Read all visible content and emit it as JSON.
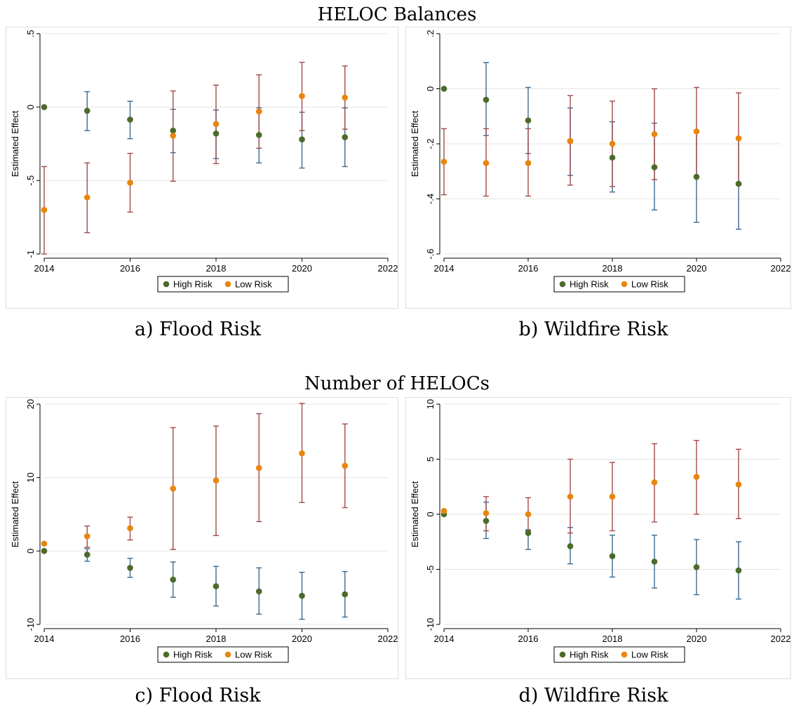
{
  "titles": {
    "top": "HELOC Balances",
    "bottom": "Number of HELOCs"
  },
  "captions": {
    "a": "a) Flood Risk",
    "b": "b) Wildfire Risk",
    "c": "c) Flood Risk",
    "d": "d) Wildfire Risk"
  },
  "colors": {
    "high_point": "#4a6b2a",
    "high_bar": "#3d6a91",
    "low_point": "#e8850c",
    "low_bar": "#a34a4a",
    "grid": "#e4e4e4",
    "frame": "#dcdcdc"
  },
  "chart_data": [
    {
      "panel": "a",
      "type": "scatter",
      "ylabel": "Estimated Effect",
      "xlim": [
        2014,
        2022
      ],
      "ylim": [
        -1,
        0.5
      ],
      "xticks": [
        2014,
        2016,
        2018,
        2020,
        2022
      ],
      "yticks": [
        -1,
        -0.5,
        0,
        0.5
      ],
      "ytick_labels": [
        "-1",
        "-.5",
        "0",
        ".5"
      ],
      "legend": [
        "High Risk",
        "Low Risk"
      ],
      "legend_position": "bottom",
      "grid": true,
      "series": [
        {
          "name": "High Risk",
          "x": [
            2014,
            2015,
            2016,
            2017,
            2018,
            2019,
            2020,
            2021
          ],
          "y": [
            0,
            -0.025,
            -0.085,
            -0.16,
            -0.18,
            -0.19,
            -0.22,
            -0.205
          ],
          "ci_low": [
            null,
            -0.16,
            -0.215,
            -0.31,
            -0.35,
            -0.38,
            -0.415,
            -0.405
          ],
          "ci_high": [
            null,
            0.105,
            0.04,
            -0.015,
            -0.02,
            -0.005,
            -0.035,
            -0.005
          ]
        },
        {
          "name": "Low Risk",
          "x": [
            2014,
            2015,
            2016,
            2017,
            2018,
            2019,
            2020,
            2021
          ],
          "y": [
            -0.7,
            -0.615,
            -0.515,
            -0.195,
            -0.115,
            -0.03,
            0.075,
            0.065
          ],
          "ci_low": [
            -1.0,
            -0.855,
            -0.715,
            -0.505,
            -0.385,
            -0.28,
            -0.16,
            -0.15
          ],
          "ci_high": [
            -0.405,
            -0.38,
            -0.315,
            0.11,
            0.15,
            0.22,
            0.305,
            0.28
          ]
        }
      ]
    },
    {
      "panel": "b",
      "type": "scatter",
      "ylabel": "Estimated Effect",
      "xlim": [
        2014,
        2022
      ],
      "ylim": [
        -0.6,
        0.2
      ],
      "xticks": [
        2014,
        2016,
        2018,
        2020,
        2022
      ],
      "yticks": [
        -0.6,
        -0.4,
        -0.2,
        0,
        0.2
      ],
      "ytick_labels": [
        "-.6",
        "-.4",
        "-.2",
        "0",
        ".2"
      ],
      "legend": [
        "High Risk",
        "Low Risk"
      ],
      "legend_position": "bottom",
      "grid": true,
      "series": [
        {
          "name": "High Risk",
          "x": [
            2014,
            2015,
            2016,
            2017,
            2018,
            2019,
            2020,
            2021
          ],
          "y": [
            0,
            -0.04,
            -0.115,
            -0.19,
            -0.25,
            -0.285,
            -0.32,
            -0.345
          ],
          "ci_low": [
            null,
            -0.17,
            -0.235,
            -0.315,
            -0.375,
            -0.44,
            -0.485,
            -0.51
          ],
          "ci_high": [
            null,
            0.095,
            0.005,
            -0.07,
            -0.12,
            -0.125,
            -0.155,
            -0.18
          ]
        },
        {
          "name": "Low Risk",
          "x": [
            2014,
            2015,
            2016,
            2017,
            2018,
            2019,
            2020,
            2021
          ],
          "y": [
            -0.265,
            -0.27,
            -0.27,
            -0.19,
            -0.2,
            -0.165,
            -0.155,
            -0.18
          ],
          "ci_low": [
            -0.385,
            -0.39,
            -0.39,
            -0.35,
            -0.355,
            -0.33,
            -0.32,
            -0.35
          ],
          "ci_high": [
            -0.145,
            -0.145,
            -0.145,
            -0.025,
            -0.045,
            0.0,
            0.005,
            -0.015
          ]
        }
      ]
    },
    {
      "panel": "c",
      "type": "scatter",
      "ylabel": "Estimated Effect",
      "xlim": [
        2014,
        2022
      ],
      "ylim": [
        -10,
        20
      ],
      "xticks": [
        2014,
        2016,
        2018,
        2020,
        2022
      ],
      "yticks": [
        -10,
        0,
        10,
        20
      ],
      "ytick_labels": [
        "-10",
        "0",
        "10",
        "20"
      ],
      "legend": [
        "High Risk",
        "Low Risk"
      ],
      "legend_position": "bottom",
      "grid": true,
      "series": [
        {
          "name": "High Risk",
          "x": [
            2014,
            2015,
            2016,
            2017,
            2018,
            2019,
            2020,
            2021
          ],
          "y": [
            0,
            -0.5,
            -2.3,
            -3.9,
            -4.8,
            -5.5,
            -6.1,
            -5.9
          ],
          "ci_low": [
            null,
            -1.4,
            -3.6,
            -6.3,
            -7.5,
            -8.6,
            -9.3,
            -9.0
          ],
          "ci_high": [
            null,
            0.3,
            -1.0,
            -1.5,
            -2.1,
            -2.3,
            -2.9,
            -2.8
          ]
        },
        {
          "name": "Low Risk",
          "x": [
            2014,
            2015,
            2016,
            2017,
            2018,
            2019,
            2020,
            2021
          ],
          "y": [
            1.0,
            2.0,
            3.1,
            8.5,
            9.6,
            11.3,
            13.3,
            11.6
          ],
          "ci_low": [
            null,
            0.5,
            1.5,
            0.2,
            2.1,
            4.0,
            6.6,
            5.9
          ],
          "ci_high": [
            null,
            3.4,
            4.6,
            16.8,
            17.0,
            18.7,
            20.1,
            17.3
          ]
        }
      ]
    },
    {
      "panel": "d",
      "type": "scatter",
      "ylabel": "Estimated Effect",
      "xlim": [
        2014,
        2022
      ],
      "ylim": [
        -10,
        10
      ],
      "xticks": [
        2014,
        2016,
        2018,
        2020,
        2022
      ],
      "yticks": [
        -10,
        -5,
        0,
        5,
        10
      ],
      "ytick_labels": [
        "-10",
        "-5",
        "0",
        "5",
        "10"
      ],
      "legend": [
        "High Risk",
        "Low Risk"
      ],
      "legend_position": "bottom",
      "grid": true,
      "series": [
        {
          "name": "High Risk",
          "x": [
            2014,
            2015,
            2016,
            2017,
            2018,
            2019,
            2020,
            2021
          ],
          "y": [
            0,
            -0.6,
            -1.7,
            -2.9,
            -3.8,
            -4.3,
            -4.8,
            -5.1
          ],
          "ci_low": [
            null,
            -2.2,
            -3.2,
            -4.5,
            -5.7,
            -6.7,
            -7.3,
            -7.7
          ],
          "ci_high": [
            null,
            1.1,
            -1.4,
            -1.2,
            -1.9,
            -1.9,
            -2.3,
            -2.5
          ]
        },
        {
          "name": "Low Risk",
          "x": [
            2014,
            2015,
            2016,
            2017,
            2018,
            2019,
            2020,
            2021
          ],
          "y": [
            0.3,
            0.1,
            0.0,
            1.6,
            1.6,
            2.9,
            3.4,
            2.7
          ],
          "ci_low": [
            null,
            -1.5,
            -1.5,
            -1.7,
            -1.5,
            -0.7,
            0.0,
            -0.4
          ],
          "ci_high": [
            null,
            1.6,
            1.5,
            5.0,
            4.7,
            6.4,
            6.7,
            5.9
          ]
        }
      ]
    }
  ]
}
